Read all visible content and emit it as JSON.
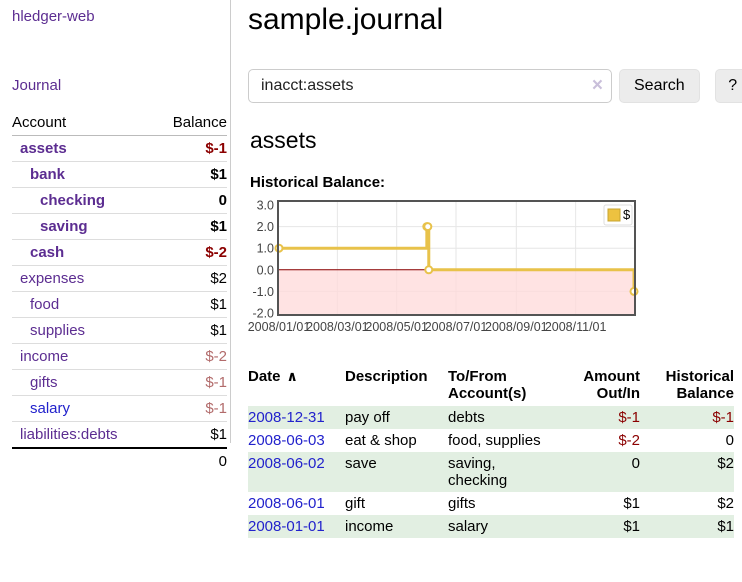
{
  "app": {
    "brand": "hledger-web",
    "nav_journal": "Journal"
  },
  "sidebar": {
    "header": {
      "account": "Account",
      "balance": "Balance"
    },
    "rows": [
      {
        "name": "assets",
        "balance": "$-1",
        "indent": 1,
        "bold": true,
        "neg": true,
        "blue": false
      },
      {
        "name": "bank",
        "balance": "$1",
        "indent": 2,
        "bold": true,
        "neg": false,
        "blue": false
      },
      {
        "name": "checking",
        "balance": "0",
        "indent": 3,
        "bold": true,
        "neg": false,
        "blue": false
      },
      {
        "name": "saving",
        "balance": "$1",
        "indent": 3,
        "bold": true,
        "neg": false,
        "blue": false
      },
      {
        "name": "cash",
        "balance": "$-2",
        "indent": 2,
        "bold": true,
        "neg": true,
        "blue": false
      },
      {
        "name": "expenses",
        "balance": "$2",
        "indent": 1,
        "bold": false,
        "neg": false,
        "blue": false
      },
      {
        "name": "food",
        "balance": "$1",
        "indent": 2,
        "bold": false,
        "neg": false,
        "blue": false
      },
      {
        "name": "supplies",
        "balance": "$1",
        "indent": 2,
        "bold": false,
        "neg": false,
        "blue": false
      },
      {
        "name": "income",
        "balance": "$-2",
        "indent": 1,
        "bold": false,
        "neg": true,
        "blue": false
      },
      {
        "name": "gifts",
        "balance": "$-1",
        "indent": 2,
        "bold": false,
        "neg": true,
        "blue": false
      },
      {
        "name": "salary",
        "balance": "$-1",
        "indent": 2,
        "bold": false,
        "neg": true,
        "blue": true
      },
      {
        "name": "liabilities:debts",
        "balance": "$1",
        "indent": 1,
        "bold": false,
        "neg": false,
        "blue": false
      }
    ],
    "total": "0"
  },
  "header": {
    "title": "sample.journal"
  },
  "search": {
    "value": "inacct:assets",
    "clear_icon": "×",
    "button_label": "Search",
    "help_label": "?"
  },
  "account_page": {
    "title": "assets",
    "chart_label": "Historical Balance:"
  },
  "chart_data": {
    "type": "line",
    "title": "Historical Balance",
    "step": true,
    "series": [
      {
        "name": "$",
        "points": [
          [
            "2008-01-01",
            1
          ],
          [
            "2008-06-01",
            2
          ],
          [
            "2008-06-02",
            2
          ],
          [
            "2008-06-03",
            0
          ],
          [
            "2008-12-31",
            -1
          ]
        ]
      }
    ],
    "ylim": [
      -2,
      3
    ],
    "yticks": [
      "3.0",
      "2.0",
      "1.0",
      "0.0",
      "-1.0",
      "-2.0"
    ],
    "ytick_values": [
      3,
      2,
      1,
      0,
      -1,
      -2
    ],
    "xticks": [
      "2008/01/01",
      "2008/03/01",
      "2008/05/01",
      "2008/07/01",
      "2008/09/01",
      "2008/11/01"
    ],
    "xtick_days": [
      0,
      60,
      121,
      182,
      244,
      305
    ],
    "x_total_days": 365,
    "legend": {
      "label": "$",
      "position": "top-right"
    },
    "grid": true,
    "colors": {
      "line": "#e8c24a",
      "marker_fill": "#ffffff",
      "negative_region": "#ffd9d9",
      "zero_line": "#8b0000",
      "grid": "#e6e6e6",
      "border": "#545454",
      "legend_swatch": "#edc240"
    }
  },
  "register": {
    "headers": {
      "date": "Date",
      "sort_caret": "∧",
      "description": "Description",
      "accounts_line1": "To/From",
      "accounts_line2": "Account(s)",
      "amount_line1": "Amount",
      "amount_line2": "Out/In",
      "balance_line1": "Historical",
      "balance_line2": "Balance"
    },
    "rows": [
      {
        "date": "2008-12-31",
        "description": "pay off",
        "accounts": "debts",
        "amount": "$-1",
        "balance": "$-1",
        "amount_neg": true,
        "balance_neg": true,
        "shaded": true
      },
      {
        "date": "2008-06-03",
        "description": "eat & shop",
        "accounts": "food, supplies",
        "amount": "$-2",
        "balance": "0",
        "amount_neg": true,
        "balance_neg": false,
        "shaded": false
      },
      {
        "date": "2008-06-02",
        "description": "save",
        "accounts": "saving, checking",
        "amount": "0",
        "balance": "$2",
        "amount_neg": false,
        "balance_neg": false,
        "shaded": true
      },
      {
        "date": "2008-06-01",
        "description": "gift",
        "accounts": "gifts",
        "amount": "$1",
        "balance": "$2",
        "amount_neg": false,
        "balance_neg": false,
        "shaded": false
      },
      {
        "date": "2008-01-01",
        "description": "income",
        "accounts": "salary",
        "amount": "$1",
        "balance": "$1",
        "amount_neg": false,
        "balance_neg": false,
        "shaded": true
      }
    ]
  }
}
